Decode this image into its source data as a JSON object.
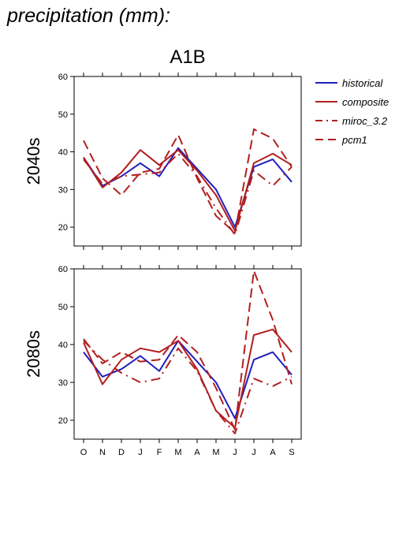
{
  "page_title": "precipitation (mm):",
  "chart_data": {
    "type": "line",
    "title": "A1B",
    "months": [
      "O",
      "N",
      "D",
      "J",
      "F",
      "M",
      "A",
      "M",
      "J",
      "J",
      "A",
      "S"
    ],
    "ylim": [
      15,
      60
    ],
    "yticks": [
      20,
      30,
      40,
      50,
      60
    ],
    "grid": false,
    "legend_position": "right",
    "legend": [
      {
        "name": "historical",
        "color": "#1f1fbf",
        "style": "solid"
      },
      {
        "name": "composite",
        "color": "#b21f1f",
        "style": "solid"
      },
      {
        "name": "miroc_3.2",
        "color": "#b21f1f",
        "style": "dashdot"
      },
      {
        "name": "pcm1",
        "color": "#b21f1f",
        "style": "dash"
      }
    ],
    "panels": [
      {
        "label": "2040s",
        "series": [
          {
            "name": "historical",
            "values": [
              38.5,
              31.0,
              33.5,
              37.0,
              33.5,
              41.0,
              35.5,
              30.0,
              20.0,
              36.0,
              38.0,
              32.0
            ]
          },
          {
            "name": "composite",
            "values": [
              38.5,
              30.5,
              34.5,
              40.5,
              36.5,
              40.5,
              35.0,
              28.5,
              19.0,
              37.0,
              39.5,
              36.5
            ]
          },
          {
            "name": "miroc_3.2",
            "values": [
              38.0,
              31.5,
              33.5,
              34.0,
              34.5,
              39.5,
              33.5,
              25.0,
              18.0,
              35.0,
              31.0,
              36.0
            ]
          },
          {
            "name": "pcm1",
            "values": [
              43.0,
              33.0,
              28.5,
              34.5,
              35.5,
              44.5,
              33.0,
              23.0,
              18.5,
              46.0,
              43.5,
              36.0
            ]
          }
        ]
      },
      {
        "label": "2080s",
        "series": [
          {
            "name": "historical",
            "values": [
              38.0,
              31.5,
              33.5,
              37.0,
              33.0,
              41.0,
              35.5,
              30.0,
              20.5,
              36.0,
              38.0,
              32.0
            ]
          },
          {
            "name": "composite",
            "values": [
              40.5,
              29.5,
              36.0,
              39.0,
              38.0,
              41.0,
              33.5,
              22.5,
              18.0,
              42.5,
              44.0,
              38.0
            ]
          },
          {
            "name": "miroc_3.2",
            "values": [
              41.0,
              36.0,
              32.5,
              30.0,
              31.0,
              39.0,
              33.0,
              22.5,
              16.5,
              31.0,
              29.0,
              31.5
            ]
          },
          {
            "name": "pcm1",
            "values": [
              41.5,
              35.0,
              38.0,
              35.5,
              36.0,
              42.5,
              38.0,
              28.5,
              17.5,
              59.5,
              46.5,
              29.5
            ]
          }
        ]
      }
    ]
  }
}
